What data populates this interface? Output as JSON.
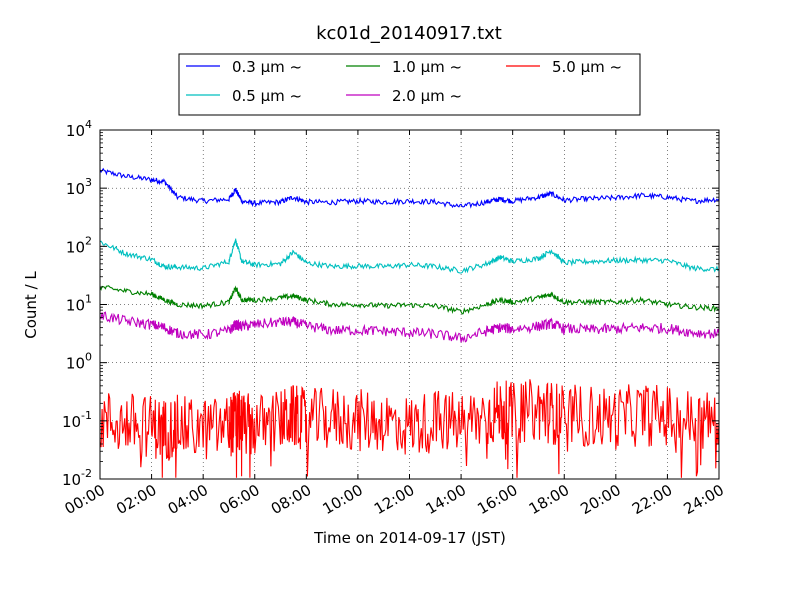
{
  "chart_data": {
    "type": "line",
    "title": "kc01d_20140917.txt",
    "xlabel": "Time on 2014-09-17 (JST)",
    "ylabel": "Count / L",
    "y_scale": "log",
    "ylim": [
      0.01,
      10000
    ],
    "xlim": [
      "00:00",
      "24:00"
    ],
    "x_ticks": [
      "00:00",
      "02:00",
      "04:00",
      "06:00",
      "08:00",
      "10:00",
      "12:00",
      "14:00",
      "16:00",
      "18:00",
      "20:00",
      "22:00",
      "24:00"
    ],
    "y_ticks": [
      {
        "base": "10",
        "exp": "-2"
      },
      {
        "base": "10",
        "exp": "-1"
      },
      {
        "base": "10",
        "exp": "0"
      },
      {
        "base": "10",
        "exp": "1"
      },
      {
        "base": "10",
        "exp": "2"
      },
      {
        "base": "10",
        "exp": "3"
      },
      {
        "base": "10",
        "exp": "4"
      }
    ],
    "grid": true,
    "legend_position": "top-center",
    "x": [
      "00:00",
      "01:00",
      "02:00",
      "02:30",
      "03:00",
      "04:00",
      "05:00",
      "05:15",
      "05:30",
      "06:00",
      "07:00",
      "07:30",
      "08:00",
      "09:00",
      "10:00",
      "11:00",
      "12:00",
      "13:00",
      "14:00",
      "15:00",
      "15:30",
      "16:00",
      "17:00",
      "17:30",
      "18:00",
      "19:00",
      "20:00",
      "21:00",
      "22:00",
      "23:00",
      "24:00"
    ],
    "series": [
      {
        "name": "0.3 μm ~",
        "color": "#0000ff",
        "values": [
          2000,
          1600,
          1400,
          1300,
          700,
          600,
          650,
          950,
          600,
          550,
          580,
          700,
          580,
          570,
          600,
          580,
          600,
          580,
          480,
          580,
          650,
          600,
          700,
          800,
          620,
          660,
          680,
          750,
          700,
          600,
          650
        ]
      },
      {
        "name": "0.5 μm ~",
        "color": "#00bfbf",
        "values": [
          120,
          75,
          60,
          45,
          44,
          42,
          55,
          130,
          55,
          48,
          50,
          80,
          52,
          45,
          46,
          45,
          48,
          45,
          38,
          50,
          65,
          55,
          62,
          85,
          52,
          55,
          57,
          58,
          57,
          42,
          40
        ]
      },
      {
        "name": "1.0 μm ~",
        "color": "#008000",
        "values": [
          20,
          17,
          15,
          12,
          10,
          9.5,
          11,
          19,
          12,
          12,
          13,
          14,
          12,
          10,
          10,
          9.5,
          9.8,
          9.5,
          7.5,
          10,
          12,
          11,
          13,
          15,
          11,
          11,
          11,
          12,
          10,
          9,
          8.5
        ]
      },
      {
        "name": "2.0 μm ~",
        "color": "#bf00bf",
        "values": [
          6.5,
          5.2,
          4.5,
          4,
          3.2,
          3.0,
          3.5,
          4.5,
          4.2,
          4.5,
          5,
          5,
          4.3,
          3.6,
          3.6,
          3.5,
          3.3,
          3.1,
          2.6,
          3.5,
          4,
          3.8,
          4.2,
          4.7,
          3.8,
          3.7,
          3.8,
          4.0,
          3.9,
          3.3,
          3.1
        ]
      },
      {
        "name": "5.0 μm ~",
        "color": "#ff0000",
        "values": [
          0.1,
          0.09,
          0.08,
          0.07,
          0.08,
          0.07,
          0.08,
          0.1,
          0.09,
          0.08,
          0.1,
          0.12,
          0.1,
          0.11,
          0.1,
          0.1,
          0.08,
          0.1,
          0.09,
          0.12,
          0.15,
          0.13,
          0.16,
          0.14,
          0.12,
          0.12,
          0.11,
          0.13,
          0.12,
          0.1,
          0.1
        ]
      }
    ]
  }
}
